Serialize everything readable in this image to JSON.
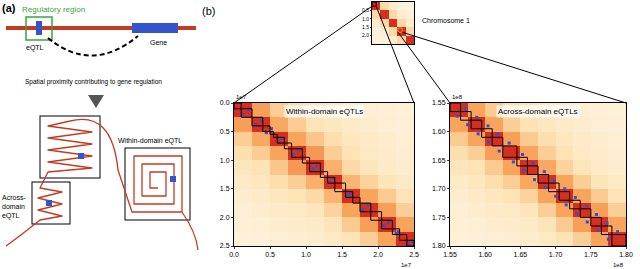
{
  "panel_a": {
    "label": "(a)",
    "regulatory_region": "Regulatory region",
    "eqtl": "eQTL",
    "gene": "Gene",
    "caption": "Spatial proximity contributing to gene regulation",
    "within": "Within-domain eQTL",
    "across": [
      "Across-",
      "domain",
      "eQTL"
    ]
  },
  "panel_b_label": "(b)",
  "chart_data": [
    {
      "type": "heatmap",
      "annotations": [
        "Chromosome 1"
      ],
      "bin_edges": [
        0,
        0.5,
        1.0,
        1.5,
        2.0,
        2.5
      ],
      "z": [
        [
          1.0,
          0.35,
          0.2,
          0.15,
          0.12
        ],
        [
          0.35,
          1.0,
          0.35,
          0.2,
          0.15
        ],
        [
          0.2,
          0.35,
          1.0,
          0.35,
          0.2
        ],
        [
          0.15,
          0.2,
          0.35,
          1.0,
          0.35
        ],
        [
          0.12,
          0.15,
          0.2,
          0.35,
          1.0
        ]
      ],
      "zlim": [
        0,
        1
      ],
      "xlim": [
        0,
        2.5
      ],
      "ylim": [
        0,
        2.5
      ],
      "yticks": [
        0.5,
        {
          "value": 1.0,
          "label": "1.0"
        },
        1.5,
        {
          "value": 2.0,
          "label": "2.0"
        }
      ],
      "tick_labels": "y",
      "zoom_boxes": [
        {
          "range": [
            0,
            0.25
          ],
          "color": "#000000"
        },
        {
          "range": [
            1.55,
            1.8
          ],
          "color": "#f28c28"
        }
      ]
    },
    {
      "type": "heatmap",
      "title": "Within-domain eQTLs",
      "scale_label": "1e7",
      "bin_edges": [
        0,
        0.25,
        0.5,
        0.75,
        1.0,
        1.25,
        1.5,
        1.75,
        2.0,
        2.25,
        2.5
      ],
      "z": [
        [
          1.0,
          0.62,
          0.4,
          0.32,
          0.27,
          0.22,
          0.2,
          0.18,
          0.17,
          0.15
        ],
        [
          0.62,
          1.0,
          0.58,
          0.41,
          0.3,
          0.26,
          0.22,
          0.2,
          0.18,
          0.16
        ],
        [
          0.4,
          0.58,
          1.0,
          0.6,
          0.44,
          0.32,
          0.26,
          0.22,
          0.2,
          0.18
        ],
        [
          0.32,
          0.41,
          0.6,
          1.0,
          0.64,
          0.4,
          0.3,
          0.24,
          0.21,
          0.19
        ],
        [
          0.27,
          0.3,
          0.44,
          0.64,
          1.0,
          0.55,
          0.35,
          0.27,
          0.23,
          0.2
        ],
        [
          0.22,
          0.26,
          0.32,
          0.4,
          0.55,
          1.0,
          0.52,
          0.38,
          0.28,
          0.24
        ],
        [
          0.2,
          0.22,
          0.26,
          0.3,
          0.35,
          0.52,
          1.0,
          0.6,
          0.42,
          0.3
        ],
        [
          0.18,
          0.2,
          0.22,
          0.24,
          0.27,
          0.38,
          0.6,
          1.0,
          0.62,
          0.4
        ],
        [
          0.17,
          0.18,
          0.2,
          0.21,
          0.23,
          0.28,
          0.42,
          0.62,
          1.0,
          0.6
        ],
        [
          0.15,
          0.16,
          0.18,
          0.19,
          0.2,
          0.24,
          0.3,
          0.4,
          0.6,
          1.0
        ]
      ],
      "zlim": [
        0,
        1
      ],
      "xlim": [
        0,
        2.5
      ],
      "ylim": [
        0,
        2.5
      ],
      "xticks": [
        {
          "value": 0,
          "label": "0.0"
        },
        0.5,
        {
          "value": 1.0,
          "label": "1.0"
        },
        1.5,
        {
          "value": 2.0,
          "label": "2.0"
        },
        2.5
      ],
      "yticks": [
        {
          "value": 0,
          "label": "0.0"
        },
        0.5,
        {
          "value": 1.0,
          "label": "1.0"
        },
        1.5,
        {
          "value": 2.0,
          "label": "2.0"
        },
        2.5
      ],
      "domains": [
        0,
        0.1,
        0.25,
        0.4,
        0.5,
        0.55,
        0.6,
        0.7,
        0.8,
        0.95,
        1.05,
        1.2,
        1.3,
        1.4,
        1.55,
        1.65,
        1.75,
        1.9,
        2.05,
        2.2,
        2.3,
        2.4,
        2.5
      ],
      "eqtls": {
        "x": [
          0.12,
          0.3,
          0.45,
          0.62,
          0.82,
          1.1,
          1.32,
          1.58,
          1.78,
          2.08,
          2.25,
          2.42,
          0.2,
          0.38,
          0.52,
          0.68,
          0.9,
          1.15,
          1.38,
          1.62,
          1.86,
          2.15,
          2.28,
          2.47
        ],
        "y": [
          0.2,
          0.38,
          0.52,
          0.68,
          0.9,
          1.15,
          1.38,
          1.62,
          1.86,
          2.15,
          2.28,
          2.47,
          0.12,
          0.3,
          0.45,
          0.62,
          0.82,
          1.1,
          1.32,
          1.58,
          1.78,
          2.08,
          2.25,
          2.42
        ],
        "color": "#2f4fd8",
        "marker": "square"
      }
    },
    {
      "type": "heatmap",
      "title": "Across-domain eQTLs",
      "scale_label": "1e8",
      "bin_edges": [
        1.55,
        1.575,
        1.6,
        1.625,
        1.65,
        1.675,
        1.7,
        1.725,
        1.75,
        1.775,
        1.8
      ],
      "z": [
        [
          1.0,
          0.6,
          0.42,
          0.32,
          0.27,
          0.23,
          0.2,
          0.18,
          0.17,
          0.15
        ],
        [
          0.6,
          1.0,
          0.6,
          0.4,
          0.3,
          0.26,
          0.22,
          0.2,
          0.18,
          0.16
        ],
        [
          0.42,
          0.6,
          1.0,
          0.62,
          0.42,
          0.32,
          0.26,
          0.22,
          0.2,
          0.18
        ],
        [
          0.32,
          0.4,
          0.62,
          1.0,
          0.6,
          0.4,
          0.3,
          0.24,
          0.21,
          0.19
        ],
        [
          0.27,
          0.3,
          0.42,
          0.6,
          1.0,
          0.58,
          0.38,
          0.27,
          0.23,
          0.2
        ],
        [
          0.23,
          0.26,
          0.32,
          0.4,
          0.58,
          1.0,
          0.6,
          0.4,
          0.28,
          0.24
        ],
        [
          0.2,
          0.22,
          0.26,
          0.3,
          0.38,
          0.6,
          1.0,
          0.6,
          0.42,
          0.3
        ],
        [
          0.18,
          0.2,
          0.22,
          0.24,
          0.27,
          0.4,
          0.6,
          1.0,
          0.62,
          0.4
        ],
        [
          0.17,
          0.18,
          0.2,
          0.21,
          0.23,
          0.28,
          0.42,
          0.62,
          1.0,
          0.6
        ],
        [
          0.15,
          0.16,
          0.18,
          0.19,
          0.2,
          0.24,
          0.3,
          0.4,
          0.6,
          1.0
        ]
      ],
      "zlim": [
        0,
        1
      ],
      "xlim": [
        1.55,
        1.8
      ],
      "ylim": [
        1.55,
        1.8
      ],
      "xticks": [
        1.55,
        {
          "value": 1.6,
          "label": "1.60"
        },
        1.65,
        {
          "value": 1.7,
          "label": "1.70"
        },
        1.75,
        {
          "value": 1.8,
          "label": "1.80"
        }
      ],
      "yticks": [
        1.55,
        {
          "value": 1.6,
          "label": "1.60"
        },
        1.65,
        {
          "value": 1.7,
          "label": "1.70"
        },
        1.75,
        {
          "value": 1.8,
          "label": "1.80"
        }
      ],
      "domains": [
        1.55,
        1.565,
        1.58,
        1.595,
        1.61,
        1.625,
        1.645,
        1.66,
        1.675,
        1.69,
        1.705,
        1.72,
        1.735,
        1.75,
        1.765,
        1.78,
        1.8
      ],
      "eqtls": {
        "x": [
          1.56,
          1.575,
          1.59,
          1.605,
          1.62,
          1.64,
          1.655,
          1.67,
          1.685,
          1.7,
          1.715,
          1.73,
          1.745,
          1.76,
          1.775,
          1.573,
          1.588,
          1.604,
          1.618,
          1.634,
          1.653,
          1.668,
          1.684,
          1.698,
          1.713,
          1.728,
          1.744,
          1.758,
          1.773,
          1.788
        ],
        "y": [
          1.573,
          1.588,
          1.604,
          1.618,
          1.634,
          1.653,
          1.668,
          1.684,
          1.698,
          1.713,
          1.728,
          1.744,
          1.758,
          1.773,
          1.788,
          1.56,
          1.575,
          1.59,
          1.605,
          1.62,
          1.64,
          1.655,
          1.67,
          1.685,
          1.7,
          1.715,
          1.73,
          1.745,
          1.76,
          1.775
        ],
        "color": "#2f4fd8",
        "marker": "square"
      }
    }
  ]
}
